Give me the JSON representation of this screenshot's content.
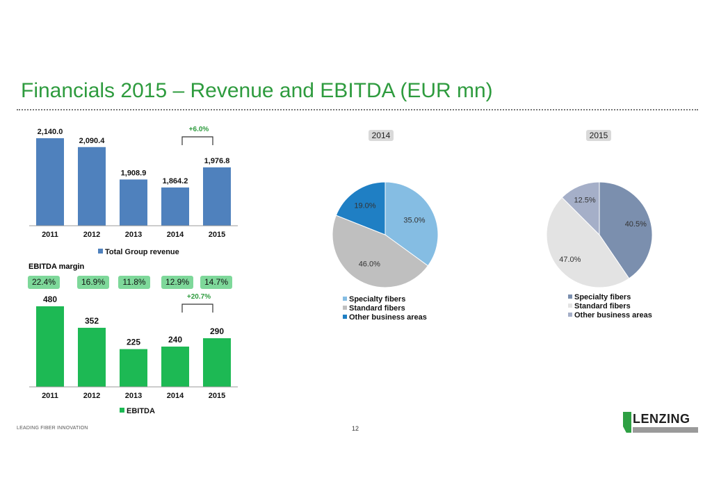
{
  "page_title": "Financials 2015 – Revenue and EBITDA (EUR mn)",
  "footer": {
    "tagline": "LEADING FIBER INNOVATION",
    "page_number": "12",
    "logo_text": "LENZING"
  },
  "colors": {
    "title": "#2e9b3e",
    "revenue_bar": "#4f81bd",
    "ebitda_bar": "#1db954",
    "margin_pill": "#7ed89a"
  },
  "ebitda_margin": {
    "label": "EBITDA margin",
    "values": [
      "22.4%",
      "16.9%",
      "11.8%",
      "12.9%",
      "14.7%"
    ]
  },
  "chart_data": [
    {
      "type": "bar",
      "name": "revenue",
      "categories": [
        "2011",
        "2012",
        "2013",
        "2014",
        "2015"
      ],
      "values": [
        2140.0,
        2090.4,
        1908.9,
        1864.2,
        1976.8
      ],
      "value_labels": [
        "2,140.0",
        "2,090.4",
        "1,908.9",
        "1,864.2",
        "1,976.8"
      ],
      "legend": "Total Group revenue",
      "annotation": {
        "text": "+6.0%",
        "from": "2014",
        "to": "2015"
      },
      "ylim": [
        1650,
        2140
      ]
    },
    {
      "type": "bar",
      "name": "ebitda",
      "categories": [
        "2011",
        "2012",
        "2013",
        "2014",
        "2015"
      ],
      "values": [
        480,
        352,
        225,
        240,
        290
      ],
      "value_labels": [
        "480",
        "352",
        "225",
        "240",
        "290"
      ],
      "legend": "EBITDA",
      "annotation": {
        "text": "+20.7%",
        "from": "2014",
        "to": "2015"
      },
      "ylim": [
        0,
        480
      ]
    },
    {
      "type": "pie",
      "name": "pie2014",
      "title": "2014",
      "slices": [
        {
          "label": "Specialty fibers",
          "value": 35.0,
          "text": "35.0%",
          "color": "#85bde3"
        },
        {
          "label": "Standard fibers",
          "value": 46.0,
          "text": "46.0%",
          "color": "#bfbfbf"
        },
        {
          "label": "Other business areas",
          "value": 19.0,
          "text": "19.0%",
          "color": "#1f7fc4"
        }
      ]
    },
    {
      "type": "pie",
      "name": "pie2015",
      "title": "2015",
      "slices": [
        {
          "label": "Specialty fibers",
          "value": 40.5,
          "text": "40.5%",
          "color": "#7b8fae"
        },
        {
          "label": "Standard fibers",
          "value": 47.0,
          "text": "47.0%",
          "color": "#e3e3e3"
        },
        {
          "label": "Other business areas",
          "value": 12.5,
          "text": "12.5%",
          "color": "#a5afc8"
        }
      ]
    }
  ]
}
